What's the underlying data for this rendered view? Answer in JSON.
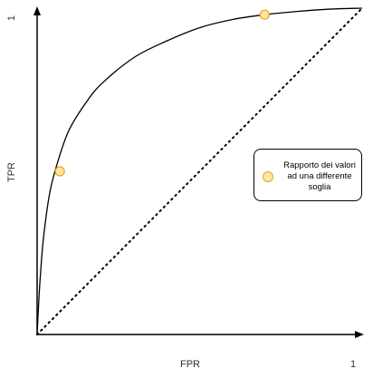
{
  "chart_data": {
    "type": "line",
    "title": "",
    "xlabel": "FPR",
    "ylabel": "TPR",
    "xlim": [
      0,
      1
    ],
    "ylim": [
      0,
      1
    ],
    "tick_labels": {
      "x_max": "1",
      "y_max": "1"
    },
    "grid": false,
    "series": [
      {
        "role": "roc-curve",
        "style": "solid",
        "x": [
          0,
          0.005,
          0.01,
          0.02,
          0.04,
          0.07,
          0.1,
          0.15,
          0.2,
          0.3,
          0.4,
          0.5,
          0.6,
          0.7,
          0.8,
          0.9,
          1
        ],
        "y": [
          0,
          0.1,
          0.18,
          0.3,
          0.44,
          0.55,
          0.63,
          0.71,
          0.77,
          0.85,
          0.9,
          0.94,
          0.965,
          0.98,
          0.99,
          0.997,
          1
        ]
      },
      {
        "role": "random-classifier-diagonal",
        "style": "dotted",
        "x": [
          0,
          1
        ],
        "y": [
          0,
          1
        ]
      }
    ],
    "points": [
      {
        "x": 0.07,
        "y": 0.5
      },
      {
        "x": 0.7,
        "y": 0.98
      }
    ],
    "legend": {
      "placement": "right",
      "label": "Rapporto dei valori ad una differente soglia"
    },
    "colors": {
      "axis": "#000000",
      "curve": "#000000",
      "point_fill": "#ffe6a6",
      "point_stroke": "#e6a420",
      "label_text": "#333333"
    }
  }
}
